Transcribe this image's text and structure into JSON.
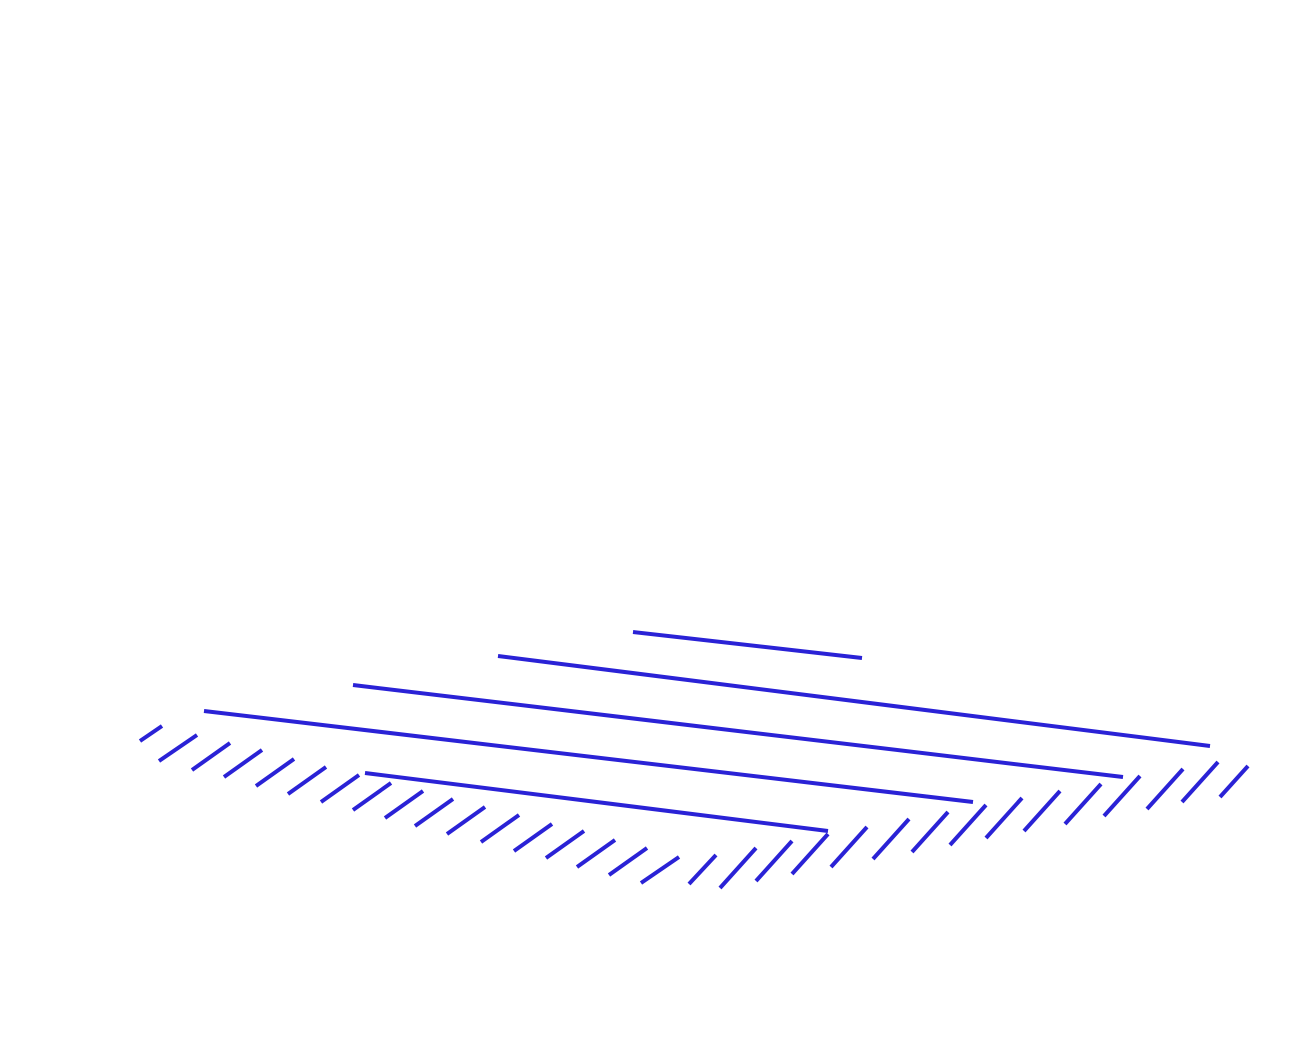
{
  "stroke_color": "#2a22d6",
  "background_color": "#ffffff",
  "diagram": {
    "description_visible_text": "",
    "long_stripe_count": 5,
    "left_hatch_count": 17,
    "right_hatch_count": 15
  }
}
